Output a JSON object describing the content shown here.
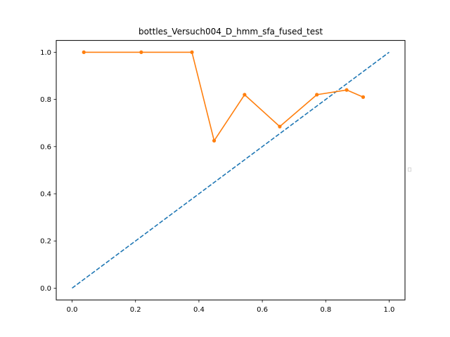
{
  "chart_data": {
    "type": "line",
    "title": "bottles_Versuch004_D_hmm_sfa_fused_test",
    "xlabel": "",
    "ylabel": "",
    "xlim": [
      -0.05,
      1.05
    ],
    "ylim": [
      -0.05,
      1.05
    ],
    "xticks": [
      "0.0",
      "0.2",
      "0.4",
      "0.6",
      "0.8",
      "1.0"
    ],
    "yticks": [
      "0.0",
      "0.2",
      "0.4",
      "0.6",
      "0.8",
      "1.0"
    ],
    "grid": false,
    "legend": "center-right",
    "series": [
      {
        "style": "dashed",
        "color": "#1f77b4",
        "x": [
          0.0,
          1.0
        ],
        "y": [
          0.0,
          1.0
        ]
      },
      {
        "style": "solid-with-markers",
        "color": "#ff7f0e",
        "x": [
          0.037,
          0.218,
          0.378,
          0.448,
          0.544,
          0.655,
          0.772,
          0.866,
          0.918
        ],
        "y": [
          1.0,
          1.0,
          1.0,
          0.625,
          0.82,
          0.685,
          0.82,
          0.84,
          0.81
        ]
      }
    ]
  }
}
